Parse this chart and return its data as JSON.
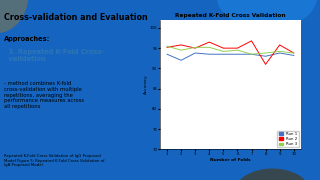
{
  "title": "Repeated K-Fold Cross Validation",
  "xlabel": "Number of Folds",
  "ylabel": "Accuracy",
  "x": [
    1,
    2,
    3,
    4,
    5,
    6,
    7,
    8,
    9,
    10
  ],
  "run1": [
    93.5,
    92.0,
    93.8,
    93.5,
    93.5,
    93.5,
    93.5,
    93.0,
    93.8,
    93.2
  ],
  "run2": [
    95.2,
    95.8,
    95.0,
    96.5,
    95.0,
    95.0,
    96.8,
    91.0,
    95.8,
    93.8
  ],
  "run3": [
    95.5,
    94.5,
    95.2,
    95.2,
    94.2,
    94.5,
    93.5,
    93.8,
    94.2,
    93.8
  ],
  "run1_color": "#4472C4",
  "run2_color": "#FF0000",
  "run3_color": "#92D050",
  "ylim": [
    70,
    102
  ],
  "yticks": [
    70,
    75,
    80,
    85,
    90,
    95,
    100
  ],
  "xticks": [
    1,
    2,
    3,
    4,
    5,
    6,
    7,
    8,
    9,
    10
  ],
  "legend_labels": [
    "Run 1",
    "Run 2",
    "Run 3"
  ],
  "chart_bg": "#FFFFFF",
  "slide_bg": "#D6E8F7",
  "blue_bg": "#1565C0",
  "left_text_title": "Cross-validation and Evaluation",
  "left_text_sub": "Approaches:",
  "left_text_3": "  3. Repeated K-Fold Cross-\n  validation",
  "left_text_body": "- method combines K-fold\ncross-validation with multiple\nrepetitions, averaging the\nperformance measures across\nall repetitions",
  "bottom_text": "Repeated K-Fold Cross Validation of IgG Proposed\nModel Figure 5: Repeated K-Fold Cross Validation of\nIgA Proposed Model"
}
